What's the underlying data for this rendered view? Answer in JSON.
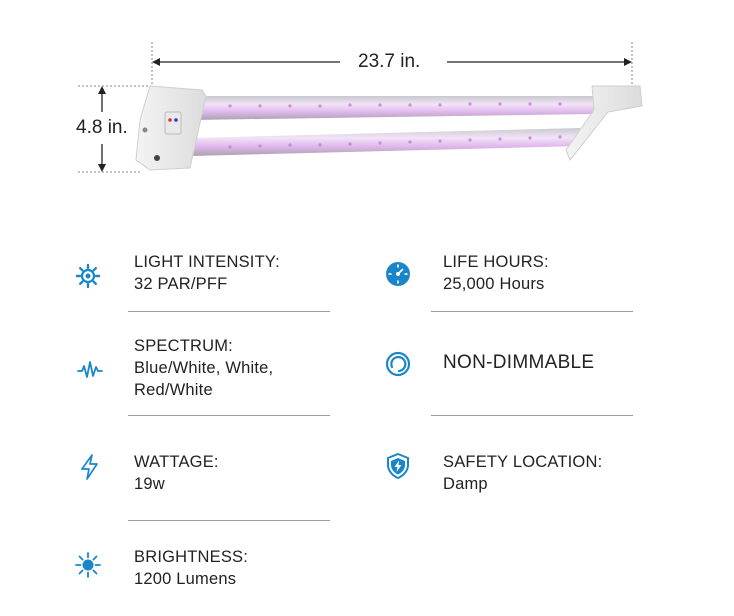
{
  "dimensions": {
    "width_label": "23.7 in.",
    "height_label": "4.8 in."
  },
  "specs": [
    {
      "id": "light-intensity",
      "title": "LIGHT INTENSITY:",
      "value": "32 PAR/PFF",
      "icon": "sun-gear-icon"
    },
    {
      "id": "life-hours",
      "title": "LIFE HOURS:",
      "value": "25,000 Hours",
      "icon": "dial-clock-icon"
    },
    {
      "id": "spectrum",
      "title": "SPECTRUM:",
      "value_line1": "Blue/White, White,",
      "value_line2": "Red/White",
      "icon": "waveform-icon"
    },
    {
      "id": "non-dimmable",
      "title": "NON-DIMMABLE",
      "icon": "circle-loop-icon"
    },
    {
      "id": "wattage",
      "title": "WATTAGE:",
      "value": "19w",
      "icon": "lightning-icon"
    },
    {
      "id": "safety-location",
      "title": "SAFETY LOCATION:",
      "value": "Damp",
      "icon": "shield-bolt-icon"
    },
    {
      "id": "brightness",
      "title": "BRIGHTNESS:",
      "value": "1200 Lumens",
      "icon": "sunburst-icon"
    }
  ],
  "colors": {
    "icon_blue": "#1a86c8",
    "tube_glow": "#d8a6e6",
    "divider": "#9a9a9a"
  }
}
